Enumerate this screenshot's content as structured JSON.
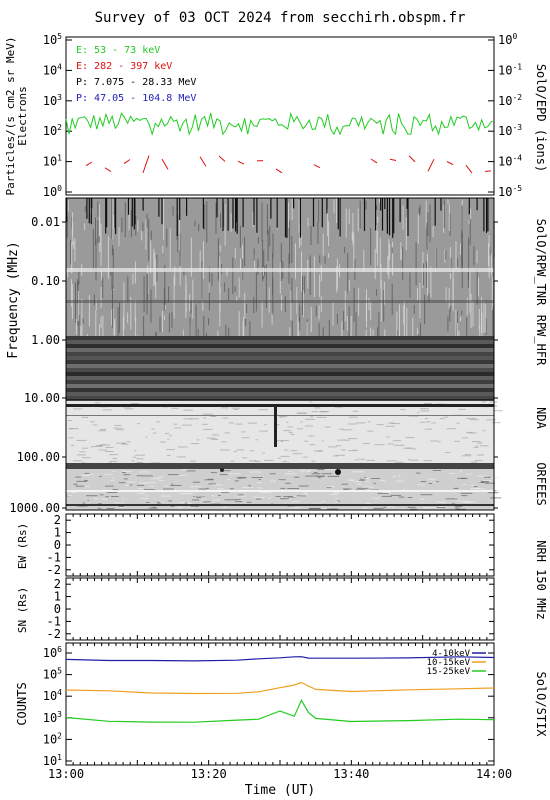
{
  "title": "Survey of 03 OCT 2024 from secchirh.obspm.fr",
  "colors": {
    "electron_low": "#22cc22",
    "electron_high": "#dd1111",
    "proton_low": "#000000",
    "proton_high": "#1f1fbb",
    "stix_low": "#1e1ea8",
    "stix_mid": "#f0a020",
    "stix_high": "#22cc22"
  },
  "time_axis": {
    "label": "Time (UT)",
    "ticks": [
      "13:00",
      "13:20",
      "13:40",
      "14:00"
    ],
    "range": [
      "13:00",
      "14:00"
    ]
  },
  "chart_data": [
    {
      "name": "epd",
      "type": "line",
      "ylabel": "Particles/(s cm2 sr MeV)",
      "ylabel2": "Electrons",
      "right_label": "SolO/EPD (ions)",
      "ylim": [
        1,
        100000
      ],
      "scale": "log",
      "left_ticks": [
        "10^0",
        "10^1",
        "10^2",
        "10^3",
        "10^4",
        "10^5"
      ],
      "right_ticks": [
        "10^-5",
        "10^-4",
        "10^-3",
        "10^-2",
        "10^-1",
        "10^0"
      ],
      "legend": [
        {
          "label": "E: 53 - 73 keV",
          "color": "#22cc22"
        },
        {
          "label": "E: 282 - 397 keV",
          "color": "#dd1111"
        },
        {
          "label": "P: 7.075 - 28.33 MeV",
          "color": "#000000"
        },
        {
          "label": "P: 47.05 - 104.8 MeV",
          "color": "#1f1fbb"
        }
      ],
      "series": [
        {
          "name": "E: 53 - 73 keV",
          "baseline": 200,
          "points": 140
        },
        {
          "name": "E: 282 - 397 keV",
          "baseline": 8,
          "sparse": true
        }
      ]
    },
    {
      "name": "spectrogram",
      "type": "heatmap",
      "ylabel": "Frequency (MHz)",
      "scale": "log",
      "upper_ticks": [
        "0.01",
        "0.10",
        "1.00",
        "10.00"
      ],
      "lower_ticks": [
        "10.00",
        "100.00",
        "1000.00"
      ],
      "instruments": [
        "SolO/RPW_TNR",
        "RPW_HFR",
        "NDA",
        "ORFEES"
      ]
    },
    {
      "name": "nrh_ew",
      "type": "scatter",
      "ylabel": "EW (Rs)",
      "ylim": [
        -2.5,
        2.5
      ],
      "ticks": [
        "2",
        "1",
        "0",
        "-1",
        "-2"
      ],
      "right_label": "NRH 150 MHz"
    },
    {
      "name": "nrh_sn",
      "type": "scatter",
      "ylabel": "SN (Rs)",
      "ylim": [
        -2.5,
        2.5
      ],
      "ticks": [
        "2",
        "1",
        "0",
        "-1",
        "-2"
      ]
    },
    {
      "name": "stix",
      "type": "line",
      "ylabel": "COUNTS",
      "right_label": "SolO/STIX",
      "scale": "log",
      "ylim": [
        10,
        1000000
      ],
      "ticks": [
        "10^1",
        "10^2",
        "10^3",
        "10^4",
        "10^5",
        "10^6"
      ],
      "legend": [
        "4-10keV",
        "10-15keV",
        "15-25keV"
      ],
      "x_minutes": [
        0,
        6,
        12,
        18,
        24,
        27,
        30,
        32,
        33,
        34,
        35,
        40,
        48,
        55,
        60
      ],
      "series": [
        {
          "name": "4-10keV",
          "values": [
            500000,
            470000,
            440000,
            430000,
            460000,
            520000,
            620000,
            640000,
            650000,
            600000,
            560000,
            560000,
            610000,
            640000,
            650000
          ]
        },
        {
          "name": "10-15keV",
          "values": [
            20000,
            17000,
            14000,
            13000,
            14000,
            16000,
            25000,
            32000,
            45000,
            30000,
            21000,
            17000,
            19000,
            22000,
            24000
          ]
        },
        {
          "name": "15-25keV",
          "values": [
            1000,
            700,
            650,
            650,
            800,
            900,
            2000,
            1200,
            6500,
            1800,
            900,
            700,
            750,
            850,
            850
          ]
        }
      ]
    }
  ]
}
